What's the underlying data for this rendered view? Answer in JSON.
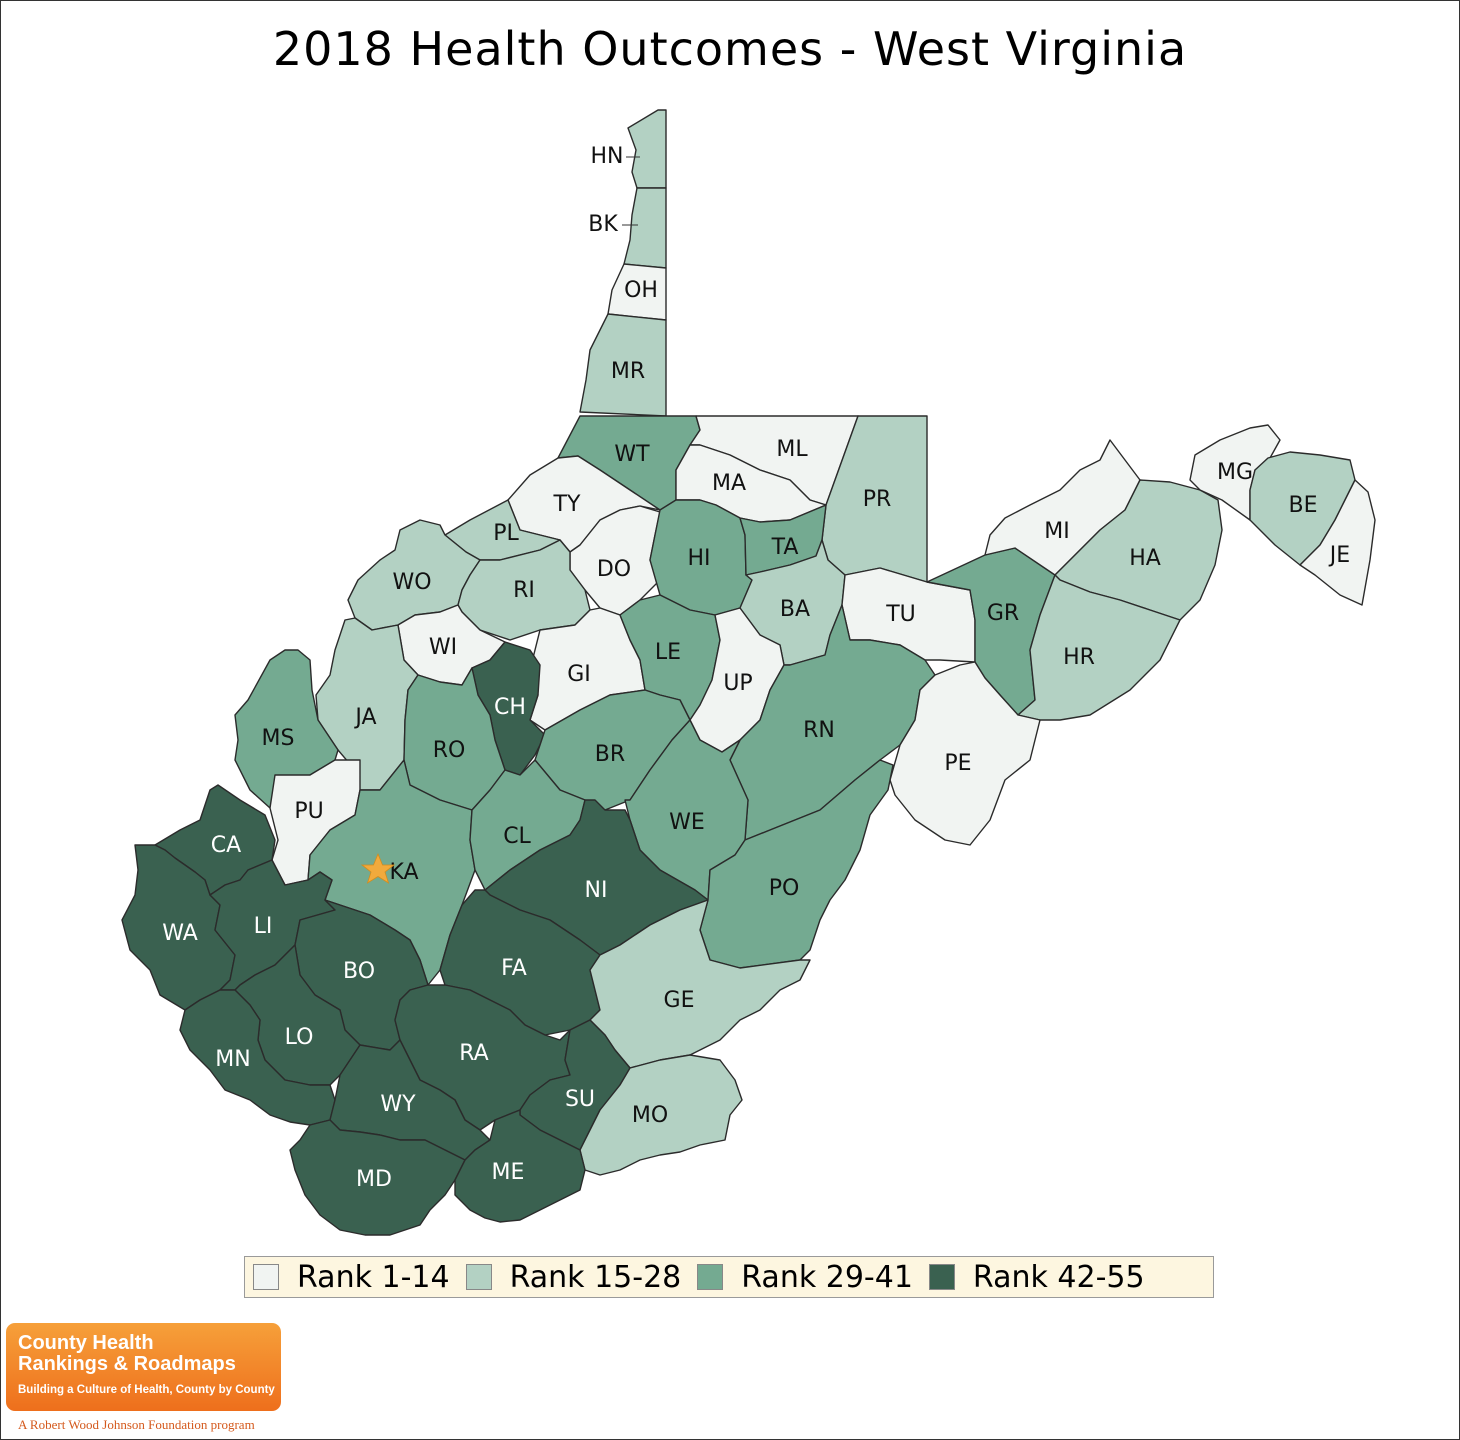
{
  "title": "2018 Health Outcomes - West Virginia",
  "colors": {
    "rank_1_14": "#f1f4f2",
    "rank_15_28": "#b3d1c3",
    "rank_29_41": "#74aa91",
    "rank_42_55": "#3a6150",
    "star": "#f2aa3c",
    "legend_bg": "#fdf6e0"
  },
  "legend": [
    {
      "label": "Rank 1-14",
      "color": "#f1f4f2"
    },
    {
      "label": "Rank 15-28",
      "color": "#b3d1c3"
    },
    {
      "label": "Rank 29-41",
      "color": "#74aa91"
    },
    {
      "label": "Rank 42-55",
      "color": "#3a6150"
    }
  ],
  "counties": [
    {
      "abbr": "HN",
      "group": 2
    },
    {
      "abbr": "BK",
      "group": 2
    },
    {
      "abbr": "OH",
      "group": 1
    },
    {
      "abbr": "MR",
      "group": 2
    },
    {
      "abbr": "WT",
      "group": 3
    },
    {
      "abbr": "ML",
      "group": 1
    },
    {
      "abbr": "MA",
      "group": 1
    },
    {
      "abbr": "PR",
      "group": 2
    },
    {
      "abbr": "TY",
      "group": 1
    },
    {
      "abbr": "PL",
      "group": 2
    },
    {
      "abbr": "DO",
      "group": 1
    },
    {
      "abbr": "HI",
      "group": 3
    },
    {
      "abbr": "TA",
      "group": 3
    },
    {
      "abbr": "WO",
      "group": 2
    },
    {
      "abbr": "RI",
      "group": 2
    },
    {
      "abbr": "BA",
      "group": 2
    },
    {
      "abbr": "TU",
      "group": 1
    },
    {
      "abbr": "GR",
      "group": 3
    },
    {
      "abbr": "MI",
      "group": 1
    },
    {
      "abbr": "HA",
      "group": 2
    },
    {
      "abbr": "MG",
      "group": 1
    },
    {
      "abbr": "BE",
      "group": 2
    },
    {
      "abbr": "JE",
      "group": 1
    },
    {
      "abbr": "WI",
      "group": 1
    },
    {
      "abbr": "GI",
      "group": 1
    },
    {
      "abbr": "LE",
      "group": 3
    },
    {
      "abbr": "UP",
      "group": 1
    },
    {
      "abbr": "HR",
      "group": 2
    },
    {
      "abbr": "JA",
      "group": 2
    },
    {
      "abbr": "CH",
      "group": 4
    },
    {
      "abbr": "RN",
      "group": 3
    },
    {
      "abbr": "MS",
      "group": 3
    },
    {
      "abbr": "RO",
      "group": 3
    },
    {
      "abbr": "BR",
      "group": 3
    },
    {
      "abbr": "PE",
      "group": 1
    },
    {
      "abbr": "PU",
      "group": 1
    },
    {
      "abbr": "CA",
      "group": 4
    },
    {
      "abbr": "KA",
      "group": 3
    },
    {
      "abbr": "CL",
      "group": 3
    },
    {
      "abbr": "WE",
      "group": 3
    },
    {
      "abbr": "NI",
      "group": 4
    },
    {
      "abbr": "PO",
      "group": 3
    },
    {
      "abbr": "WA",
      "group": 4
    },
    {
      "abbr": "LI",
      "group": 4
    },
    {
      "abbr": "BO",
      "group": 4
    },
    {
      "abbr": "FA",
      "group": 4
    },
    {
      "abbr": "GE",
      "group": 2
    },
    {
      "abbr": "LO",
      "group": 4
    },
    {
      "abbr": "MN",
      "group": 4
    },
    {
      "abbr": "RA",
      "group": 4
    },
    {
      "abbr": "WY",
      "group": 4
    },
    {
      "abbr": "SU",
      "group": 4
    },
    {
      "abbr": "MO",
      "group": 2
    },
    {
      "abbr": "MD",
      "group": 4
    },
    {
      "abbr": "ME",
      "group": 4
    }
  ],
  "capital": {
    "county": "KA",
    "icon": "star-icon"
  },
  "logo": {
    "line1": "County Health",
    "line2": "Rankings & Roadmaps",
    "tagline": "Building a Culture of Health, County by County",
    "foundation": "A Robert Wood Johnson Foundation program"
  }
}
